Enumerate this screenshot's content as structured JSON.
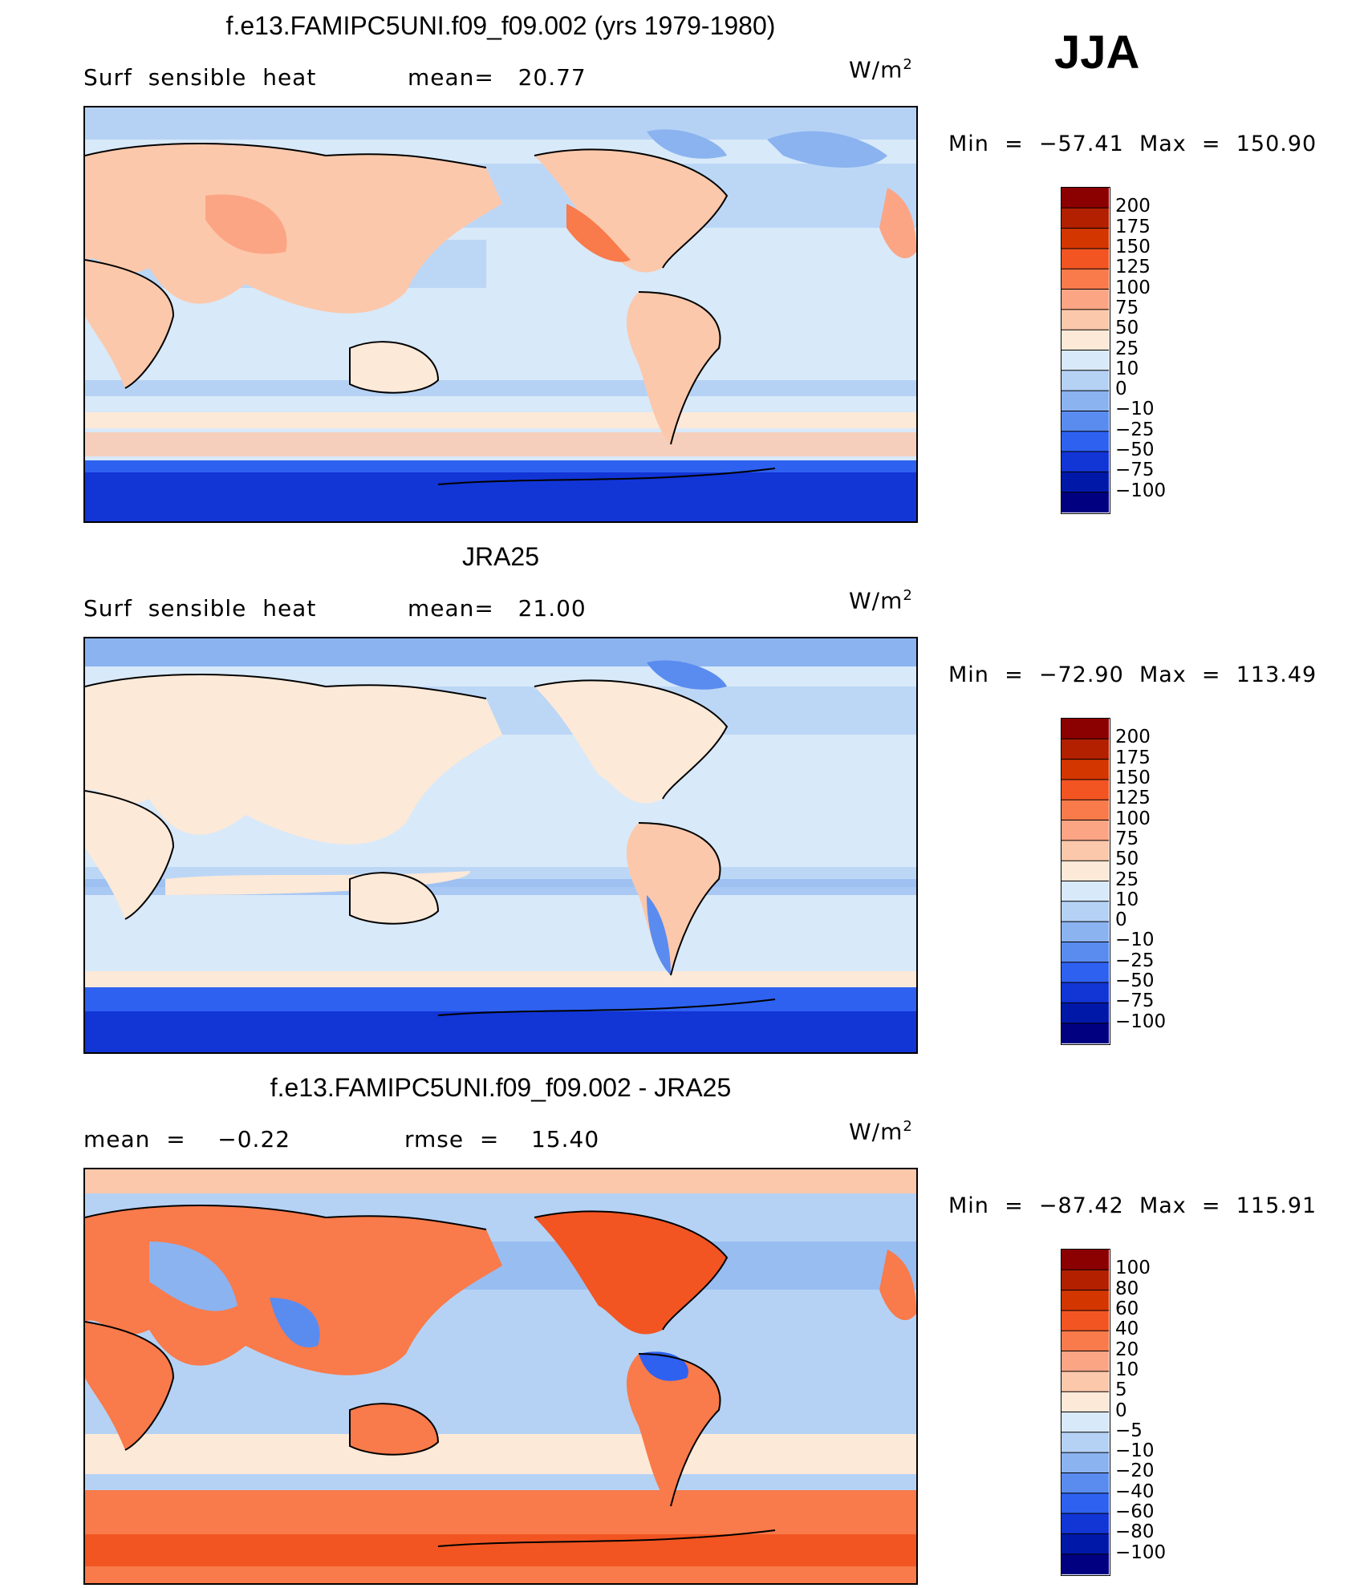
{
  "season": "JJA",
  "panels": [
    {
      "title": "f.e13.FAMIPC5UNI.f09_f09.002 (yrs 1979-1980)",
      "left_text": "Surf  sensible  heat",
      "mid_text": "mean=   20.77",
      "units_base": "W/m",
      "units_exp": "2",
      "minmax": "Min  =  −57.41  Max  =  150.90",
      "colorbar": {
        "labels": [
          "200",
          "175",
          "150",
          "125",
          "100",
          "75",
          "50",
          "25",
          "10",
          "0",
          "−10",
          "−25",
          "−50",
          "−75",
          "−100"
        ],
        "colors": [
          "#8b0000",
          "#b22000",
          "#d43600",
          "#f25522",
          "#f97a4a",
          "#fba585",
          "#fcc8ab",
          "#fde9d8",
          "#d8e9f9",
          "#b5d2f5",
          "#8bb3f0",
          "#5a8cf0",
          "#2e61f0",
          "#1235d6",
          "#0018a8",
          "#000080"
        ]
      },
      "chart_data": {
        "type": "heatmap",
        "title": "f.e13.FAMIPC5UNI.f09_f09.002 (yrs 1979-1980)",
        "field": "Surf sensible heat",
        "mean": 20.77,
        "min": -57.41,
        "max": 150.9,
        "contour_levels": [
          -100,
          -75,
          -50,
          -25,
          -10,
          0,
          10,
          25,
          50,
          75,
          100,
          125,
          150,
          175,
          200
        ]
      }
    },
    {
      "title": "JRA25",
      "left_text": "Surf  sensible  heat",
      "mid_text": "mean=   21.00",
      "units_base": "W/m",
      "units_exp": "2",
      "minmax": "Min  =  −72.90  Max  =  113.49",
      "colorbar": {
        "labels": [
          "200",
          "175",
          "150",
          "125",
          "100",
          "75",
          "50",
          "25",
          "10",
          "0",
          "−10",
          "−25",
          "−50",
          "−75",
          "−100"
        ],
        "colors": [
          "#8b0000",
          "#b22000",
          "#d43600",
          "#f25522",
          "#f97a4a",
          "#fba585",
          "#fcc8ab",
          "#fde9d8",
          "#d8e9f9",
          "#b5d2f5",
          "#8bb3f0",
          "#5a8cf0",
          "#2e61f0",
          "#1235d6",
          "#0018a8",
          "#000080"
        ]
      },
      "chart_data": {
        "type": "heatmap",
        "title": "JRA25",
        "field": "Surf sensible heat",
        "mean": 21.0,
        "min": -72.9,
        "max": 113.49,
        "contour_levels": [
          -100,
          -75,
          -50,
          -25,
          -10,
          0,
          10,
          25,
          50,
          75,
          100,
          125,
          150,
          175,
          200
        ]
      }
    },
    {
      "title": "f.e13.FAMIPC5UNI.f09_f09.002 - JRA25",
      "left_text": "mean  =    −0.22",
      "mid_text": "rmse  =    15.40",
      "units_base": "W/m",
      "units_exp": "2",
      "minmax": "Min  =  −87.42  Max  =  115.91",
      "colorbar": {
        "labels": [
          "100",
          "80",
          "60",
          "40",
          "20",
          "10",
          "5",
          "0",
          "−5",
          "−10",
          "−20",
          "−40",
          "−60",
          "−80",
          "−100"
        ],
        "colors": [
          "#8b0000",
          "#b22000",
          "#d43600",
          "#f25522",
          "#f97a4a",
          "#fba585",
          "#fcc8ab",
          "#fde9d8",
          "#d8e9f9",
          "#b5d2f5",
          "#8bb3f0",
          "#5a8cf0",
          "#2e61f0",
          "#1235d6",
          "#0018a8",
          "#000080"
        ]
      },
      "chart_data": {
        "type": "heatmap",
        "title": "f.e13.FAMIPC5UNI.f09_f09.002 - JRA25",
        "mean": -0.22,
        "rmse": 15.4,
        "min": -87.42,
        "max": 115.91,
        "contour_levels": [
          -100,
          -80,
          -60,
          -40,
          -20,
          -10,
          -5,
          0,
          5,
          10,
          20,
          40,
          60,
          80,
          100
        ]
      }
    }
  ]
}
